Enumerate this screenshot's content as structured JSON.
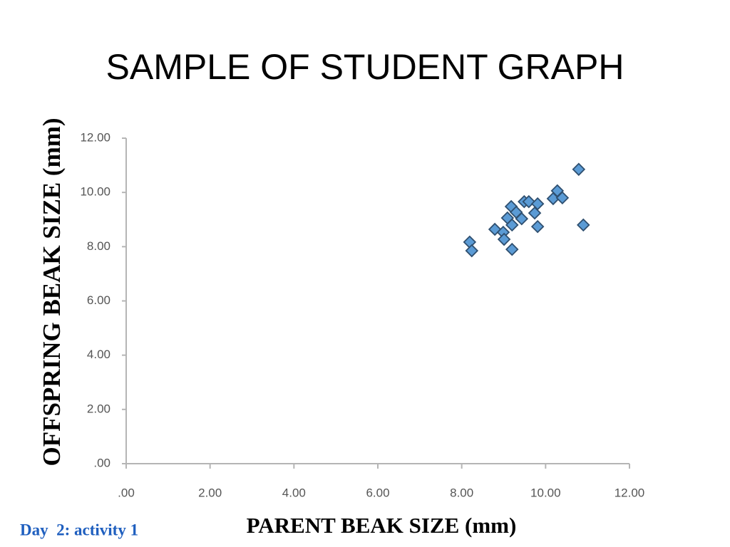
{
  "chart_data": {
    "type": "scatter",
    "title": "SAMPLE OF STUDENT GRAPH",
    "x_label": "PARENT BEAK SIZE (mm)",
    "y_label": "OFFSPRING BEAK SIZE (mm)",
    "annotation": "Day  2: activity 1",
    "x": [
      8.19,
      8.24,
      8.79,
      8.99,
      9.01,
      9.09,
      9.2,
      9.2,
      9.18,
      9.3,
      9.43,
      9.49,
      9.6,
      9.74,
      9.81,
      9.81,
      10.18,
      10.28,
      10.4,
      10.79,
      10.9
    ],
    "values": [
      8.17,
      7.85,
      8.64,
      8.53,
      8.27,
      9.06,
      8.8,
      7.9,
      9.48,
      9.27,
      9.03,
      9.66,
      9.66,
      9.24,
      8.74,
      9.58,
      9.77,
      10.06,
      9.8,
      10.85,
      8.8
    ],
    "color": "#5b9bd5",
    "marker": "diamond",
    "xlim": [
      0,
      12
    ],
    "ylim": [
      0,
      12
    ],
    "xticks": [
      {
        "value": 0,
        "label": ".00"
      },
      {
        "value": 2,
        "label": "2.00"
      },
      {
        "value": 4,
        "label": "4.00"
      },
      {
        "value": 6,
        "label": "6.00"
      },
      {
        "value": 8,
        "label": "8.00"
      },
      {
        "value": 10,
        "label": "10.00"
      },
      {
        "value": 12,
        "label": "12.00"
      }
    ],
    "yticks": [
      {
        "value": 0,
        "label": ".00"
      },
      {
        "value": 2,
        "label": "2.00"
      },
      {
        "value": 4,
        "label": "4.00"
      },
      {
        "value": 6,
        "label": "6.00"
      },
      {
        "value": 8,
        "label": "8.00"
      },
      {
        "value": 10,
        "label": "10.00"
      },
      {
        "value": 12,
        "label": "12.00"
      }
    ],
    "grid": false
  }
}
